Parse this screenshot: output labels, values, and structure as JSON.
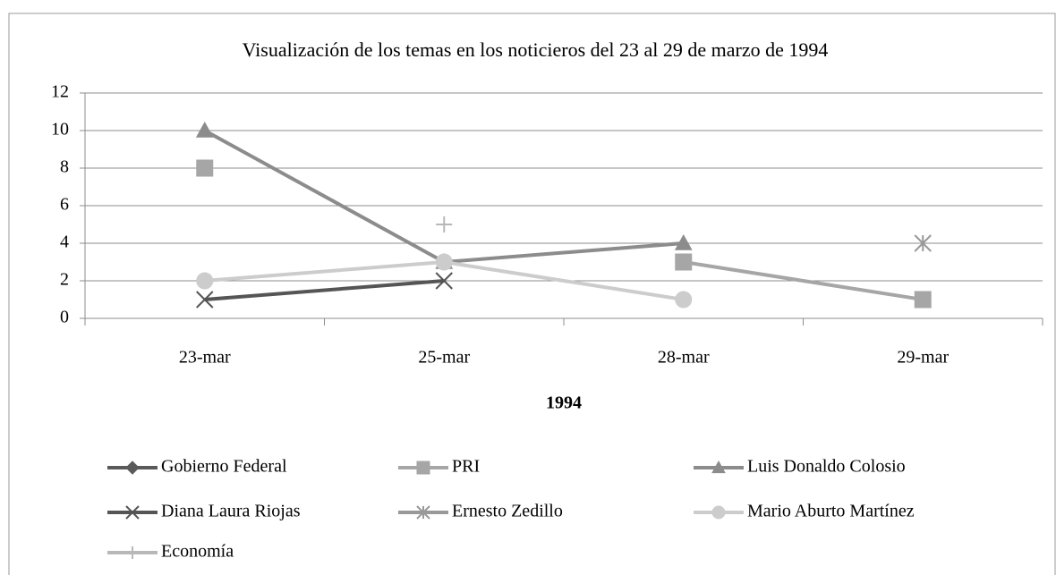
{
  "chart_data": {
    "type": "line",
    "title": "Visualización de los temas en los noticieros del 23 al 29 de marzo de 1994",
    "x_label": "1994",
    "categories": [
      "23-mar",
      "25-mar",
      "28-mar",
      "29-mar"
    ],
    "ylim": [
      0,
      12
    ],
    "yticks": [
      0,
      2,
      4,
      6,
      8,
      10,
      12
    ],
    "grid": true,
    "legend": "bottom",
    "series": [
      {
        "name": "Gobierno Federal",
        "color": "#5a5a5a",
        "marker": "diamond",
        "values": [
          null,
          null,
          null,
          null
        ]
      },
      {
        "name": "PRI",
        "color": "#a6a6a6",
        "marker": "square",
        "values": [
          8,
          null,
          3,
          1
        ]
      },
      {
        "name": "Luis Donaldo Colosio",
        "color": "#8c8c8c",
        "marker": "triangle",
        "values": [
          10,
          3,
          4,
          null
        ]
      },
      {
        "name": "Diana Laura Riojas",
        "color": "#555555",
        "marker": "x",
        "values": [
          1,
          2,
          null,
          null
        ]
      },
      {
        "name": "Ernesto Zedillo",
        "color": "#999999",
        "marker": "asterisk",
        "values": [
          null,
          null,
          null,
          4
        ]
      },
      {
        "name": "Mario Aburto Martínez",
        "color": "#cccccc",
        "marker": "circle",
        "values": [
          2,
          3,
          1,
          null
        ]
      },
      {
        "name": "Economía",
        "color": "#b8b8b8",
        "marker": "plus",
        "values": [
          null,
          5,
          null,
          null
        ]
      }
    ]
  }
}
